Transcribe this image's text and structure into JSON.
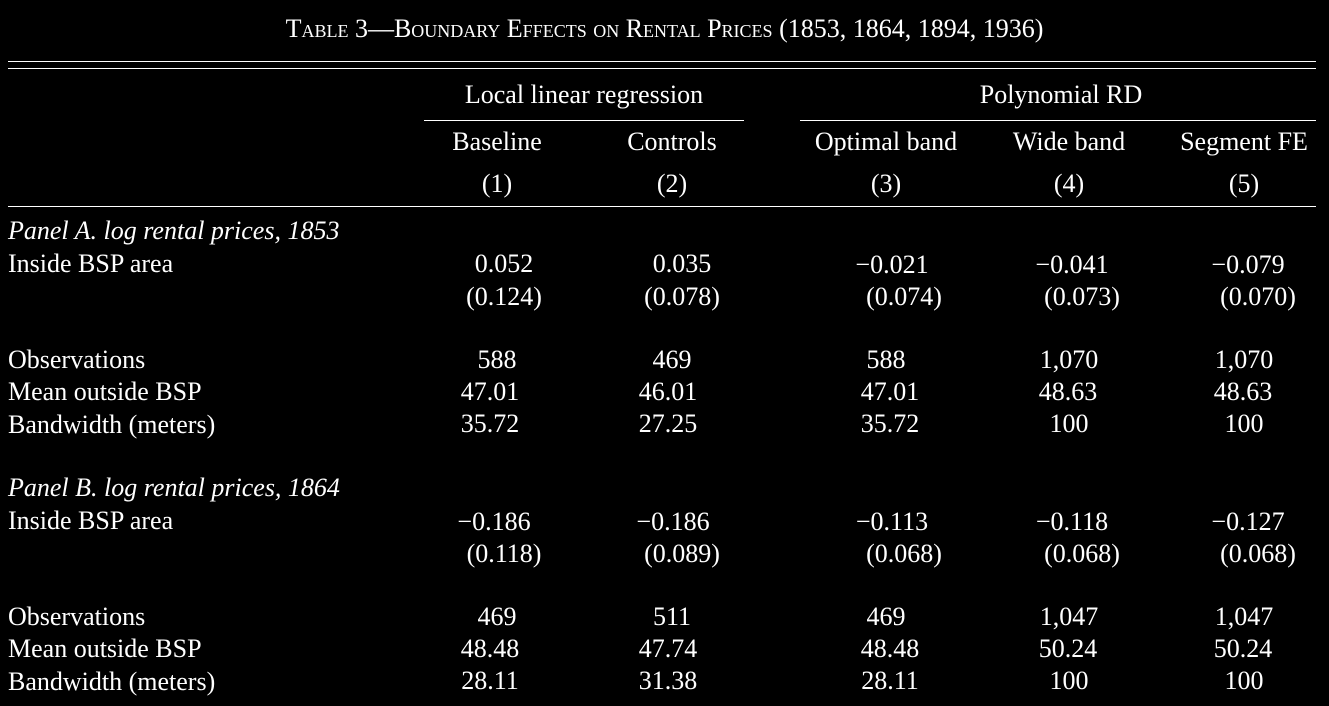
{
  "title": {
    "prefix": "Table 3—Boundary Effects on Rental Prices",
    "suffix": " (1853, 1864, 1894, 1936)"
  },
  "header": {
    "group1": "Local linear regression",
    "group2": "Polynomial RD",
    "columns": [
      {
        "label": "Baseline",
        "num": "(1)"
      },
      {
        "label": "Controls",
        "num": "(2)"
      },
      {
        "label": "Optimal band",
        "num": "(3)"
      },
      {
        "label": "Wide band",
        "num": "(4)"
      },
      {
        "label": "Segment FE",
        "num": "(5)"
      }
    ]
  },
  "panels": [
    {
      "title": "Panel A. log rental prices, 1853",
      "coef_label": "Inside BSP area",
      "coef": [
        "0.052",
        "0.035",
        "−0.021",
        "−0.041",
        "−0.079"
      ],
      "se": [
        "(0.124)",
        "(0.078)",
        "(0.074)",
        "(0.073)",
        "(0.070)"
      ],
      "stats": [
        {
          "label": "Observations",
          "values": [
            "588",
            "469",
            "588",
            "1,070",
            "1,070"
          ]
        },
        {
          "label": "Mean outside BSP",
          "values": [
            "47.01",
            "46.01",
            "47.01",
            "48.63",
            "48.63"
          ]
        },
        {
          "label": "Bandwidth (meters)",
          "values": [
            "35.72",
            "27.25",
            "35.72",
            "100",
            "100"
          ]
        }
      ]
    },
    {
      "title": "Panel B. log rental prices, 1864",
      "coef_label": "Inside BSP area",
      "coef": [
        "−0.186",
        "−0.186",
        "−0.113",
        "−0.118",
        "−0.127"
      ],
      "se": [
        "(0.118)",
        "(0.089)",
        "(0.068)",
        "(0.068)",
        "(0.068)"
      ],
      "stats": [
        {
          "label": "Observations",
          "values": [
            "469",
            "511",
            "469",
            "1,047",
            "1,047"
          ]
        },
        {
          "label": "Mean outside BSP",
          "values": [
            "48.48",
            "47.74",
            "48.48",
            "50.24",
            "50.24"
          ]
        },
        {
          "label": "Bandwidth (meters)",
          "values": [
            "28.11",
            "31.38",
            "28.11",
            "100",
            "100"
          ]
        }
      ]
    }
  ]
}
